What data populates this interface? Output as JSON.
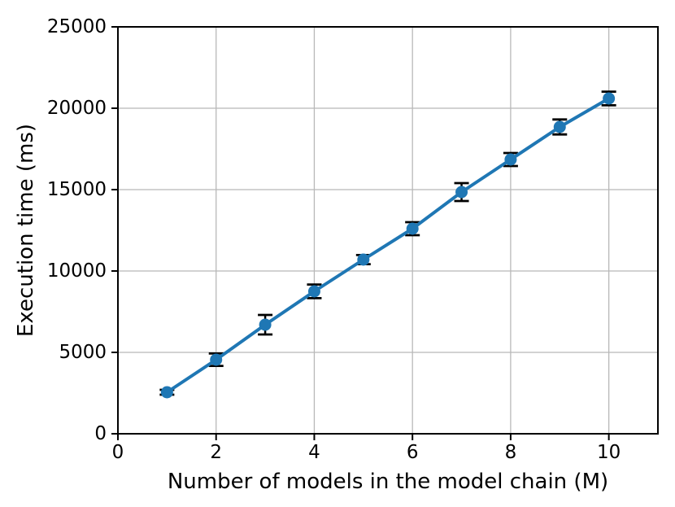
{
  "figure": {
    "background_color": "#ffffff"
  },
  "chart_data": {
    "type": "line",
    "title": "",
    "xlabel": "Number of models in the model chain (M)",
    "ylabel": "Execution time (ms)",
    "x": [
      1,
      2,
      3,
      4,
      5,
      6,
      7,
      8,
      9,
      10
    ],
    "series": [
      {
        "name": "execution-time",
        "values": [
          2550,
          4550,
          6700,
          8750,
          10700,
          12600,
          14850,
          16850,
          18850,
          20600
        ],
        "errors": [
          150,
          380,
          600,
          420,
          280,
          400,
          550,
          400,
          460,
          420
        ]
      }
    ],
    "xlim": [
      0,
      11
    ],
    "ylim": [
      0,
      25000
    ],
    "xticks": [
      0,
      2,
      4,
      6,
      8,
      10
    ],
    "yticks": [
      0,
      5000,
      10000,
      15000,
      20000,
      25000
    ],
    "grid": true,
    "legend": "none",
    "line_color": "#1f77b4",
    "marker_color": "#1f77b4",
    "errorbar_color": "#000000",
    "grid_color": "#b8b8b8",
    "spine_color": "#000000",
    "marker": "circle"
  }
}
